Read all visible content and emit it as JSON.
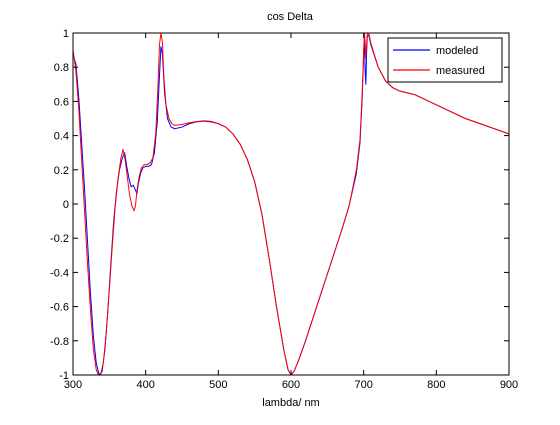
{
  "chart_data": {
    "type": "line",
    "title": "cos Delta",
    "xlabel": "lambda/ nm",
    "ylabel": "",
    "xlim": [
      300,
      900
    ],
    "ylim": [
      -1,
      1
    ],
    "xticks": [
      "300",
      "400",
      "500",
      "600",
      "700",
      "800",
      "900"
    ],
    "yticks": [
      "-1",
      "-0.8",
      "-0.6",
      "-0.4",
      "-0.2",
      "0",
      "0.2",
      "0.4",
      "0.6",
      "0.8",
      "1"
    ],
    "grid": false,
    "legend_position": "top-right",
    "series": [
      {
        "name": "modeled",
        "color": "#0000ff",
        "points": [
          [
            300,
            0.87
          ],
          [
            304,
            0.82
          ],
          [
            308,
            0.62
          ],
          [
            312,
            0.35
          ],
          [
            316,
            0.08
          ],
          [
            320,
            -0.22
          ],
          [
            324,
            -0.52
          ],
          [
            328,
            -0.77
          ],
          [
            332,
            -0.93
          ],
          [
            336,
            -1.0
          ],
          [
            340,
            -0.98
          ],
          [
            344,
            -0.85
          ],
          [
            348,
            -0.62
          ],
          [
            352,
            -0.35
          ],
          [
            356,
            -0.1
          ],
          [
            360,
            0.08
          ],
          [
            364,
            0.2
          ],
          [
            368,
            0.27
          ],
          [
            371,
            0.3
          ],
          [
            374,
            0.22
          ],
          [
            377,
            0.15
          ],
          [
            380,
            0.1
          ],
          [
            383,
            0.11
          ],
          [
            386,
            0.08
          ],
          [
            388,
            0.06
          ],
          [
            390,
            0.12
          ],
          [
            393,
            0.18
          ],
          [
            396,
            0.21
          ],
          [
            400,
            0.22
          ],
          [
            404,
            0.22
          ],
          [
            408,
            0.23
          ],
          [
            412,
            0.3
          ],
          [
            416,
            0.48
          ],
          [
            419,
            0.75
          ],
          [
            421,
            0.92
          ],
          [
            423,
            0.88
          ],
          [
            426,
            0.65
          ],
          [
            430,
            0.5
          ],
          [
            435,
            0.45
          ],
          [
            440,
            0.44
          ],
          [
            450,
            0.45
          ],
          [
            460,
            0.47
          ],
          [
            470,
            0.48
          ],
          [
            480,
            0.485
          ],
          [
            490,
            0.48
          ],
          [
            500,
            0.47
          ],
          [
            510,
            0.45
          ],
          [
            520,
            0.41
          ],
          [
            530,
            0.35
          ],
          [
            540,
            0.26
          ],
          [
            550,
            0.13
          ],
          [
            560,
            -0.06
          ],
          [
            570,
            -0.32
          ],
          [
            580,
            -0.6
          ],
          [
            590,
            -0.85
          ],
          [
            596,
            -0.97
          ],
          [
            600,
            -1.0
          ],
          [
            604,
            -0.98
          ],
          [
            610,
            -0.92
          ],
          [
            620,
            -0.8
          ],
          [
            630,
            -0.67
          ],
          [
            640,
            -0.54
          ],
          [
            650,
            -0.41
          ],
          [
            660,
            -0.28
          ],
          [
            670,
            -0.15
          ],
          [
            680,
            -0.01
          ],
          [
            690,
            0.18
          ],
          [
            695,
            0.36
          ],
          [
            698,
            0.62
          ],
          [
            700,
            0.88
          ],
          [
            701,
            0.97
          ],
          [
            702,
            0.78
          ],
          [
            703,
            0.7
          ],
          [
            704,
            0.88
          ],
          [
            705,
            0.98
          ],
          [
            707,
            0.99
          ],
          [
            710,
            0.93
          ],
          [
            720,
            0.8
          ],
          [
            730,
            0.72
          ],
          [
            740,
            0.68
          ],
          [
            750,
            0.66
          ],
          [
            760,
            0.65
          ],
          [
            770,
            0.64
          ],
          [
            780,
            0.62
          ],
          [
            790,
            0.6
          ],
          [
            800,
            0.58
          ],
          [
            820,
            0.54
          ],
          [
            840,
            0.5
          ],
          [
            860,
            0.47
          ],
          [
            880,
            0.44
          ],
          [
            900,
            0.41
          ]
        ]
      },
      {
        "name": "measured",
        "color": "#ff0000",
        "points": [
          [
            300,
            0.9
          ],
          [
            304,
            0.78
          ],
          [
            308,
            0.55
          ],
          [
            312,
            0.25
          ],
          [
            316,
            -0.05
          ],
          [
            320,
            -0.35
          ],
          [
            324,
            -0.62
          ],
          [
            328,
            -0.85
          ],
          [
            332,
            -0.97
          ],
          [
            335,
            -1.0
          ],
          [
            338,
            -1.0
          ],
          [
            342,
            -0.92
          ],
          [
            346,
            -0.74
          ],
          [
            350,
            -0.5
          ],
          [
            354,
            -0.25
          ],
          [
            358,
            -0.02
          ],
          [
            362,
            0.15
          ],
          [
            366,
            0.27
          ],
          [
            369,
            0.32
          ],
          [
            372,
            0.25
          ],
          [
            375,
            0.15
          ],
          [
            378,
            0.05
          ],
          [
            381,
            -0.01
          ],
          [
            384,
            -0.04
          ],
          [
            386,
            -0.01
          ],
          [
            388,
            0.08
          ],
          [
            391,
            0.16
          ],
          [
            394,
            0.21
          ],
          [
            398,
            0.23
          ],
          [
            402,
            0.23
          ],
          [
            406,
            0.24
          ],
          [
            410,
            0.27
          ],
          [
            414,
            0.42
          ],
          [
            417,
            0.7
          ],
          [
            419,
            0.93
          ],
          [
            421,
            1.0
          ],
          [
            423,
            0.95
          ],
          [
            425,
            0.75
          ],
          [
            428,
            0.58
          ],
          [
            432,
            0.5
          ],
          [
            436,
            0.47
          ],
          [
            440,
            0.46
          ],
          [
            450,
            0.465
          ],
          [
            460,
            0.475
          ],
          [
            470,
            0.482
          ],
          [
            480,
            0.487
          ],
          [
            490,
            0.483
          ],
          [
            500,
            0.47
          ],
          [
            510,
            0.45
          ],
          [
            520,
            0.41
          ],
          [
            530,
            0.35
          ],
          [
            540,
            0.26
          ],
          [
            550,
            0.13
          ],
          [
            560,
            -0.06
          ],
          [
            570,
            -0.32
          ],
          [
            580,
            -0.6
          ],
          [
            590,
            -0.85
          ],
          [
            596,
            -0.97
          ],
          [
            600,
            -1.0
          ],
          [
            604,
            -0.98
          ],
          [
            610,
            -0.92
          ],
          [
            620,
            -0.8
          ],
          [
            630,
            -0.67
          ],
          [
            640,
            -0.54
          ],
          [
            650,
            -0.41
          ],
          [
            660,
            -0.28
          ],
          [
            670,
            -0.15
          ],
          [
            680,
            -0.01
          ],
          [
            690,
            0.2
          ],
          [
            695,
            0.38
          ],
          [
            698,
            0.65
          ],
          [
            700,
            0.9
          ],
          [
            701,
            1.0
          ],
          [
            702,
            0.95
          ],
          [
            703,
            0.85
          ],
          [
            705,
            1.0
          ],
          [
            707,
            1.0
          ],
          [
            710,
            0.94
          ],
          [
            720,
            0.8
          ],
          [
            730,
            0.72
          ],
          [
            740,
            0.68
          ],
          [
            750,
            0.66
          ],
          [
            760,
            0.65
          ],
          [
            770,
            0.64
          ],
          [
            780,
            0.62
          ],
          [
            790,
            0.6
          ],
          [
            800,
            0.58
          ],
          [
            820,
            0.54
          ],
          [
            840,
            0.5
          ],
          [
            860,
            0.47
          ],
          [
            880,
            0.44
          ],
          [
            900,
            0.41
          ]
        ]
      }
    ]
  }
}
